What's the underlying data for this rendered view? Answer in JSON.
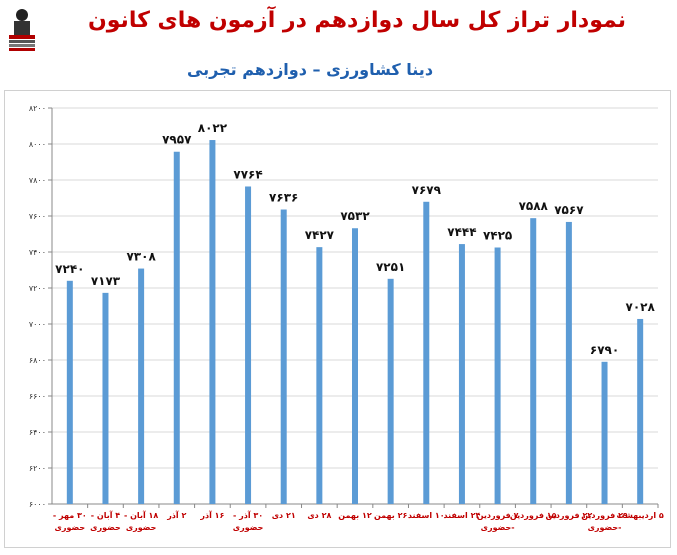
{
  "title": "نمودار تراز کل سال دوازدهم در آزمون های کانون",
  "subtitle": "دینا کشاورزی – دوازدهم تجربی",
  "colors": {
    "bar": "#5b9bd5",
    "title": "#c00000",
    "subtitle": "#1f5fae",
    "xlabel": "#c00000",
    "grid": "#d9d9d9"
  },
  "chart_data": {
    "type": "bar",
    "title": "نمودار تراز کل سال دوازدهم در آزمون های کانون",
    "subtitle": "دینا کشاورزی – دوازدهم تجربی",
    "ylim": [
      6000,
      8200
    ],
    "yticks": [
      6000,
      6200,
      6400,
      6600,
      6800,
      7000,
      7200,
      7400,
      7600,
      7800,
      8000,
      8200
    ],
    "ytick_labels": [
      "۶۰۰۰",
      "۶۲۰۰",
      "۶۴۰۰",
      "۶۶۰۰",
      "۶۸۰۰",
      "۷۰۰۰",
      "۷۲۰۰",
      "۷۴۰۰",
      "۷۶۰۰",
      "۷۸۰۰",
      "۸۰۰۰",
      "۸۲۰۰"
    ],
    "grid": true,
    "categories": [
      [
        "۳۰ مهر -",
        "حضوری"
      ],
      [
        "۴ آبان -",
        "حضوری"
      ],
      [
        "۱۸ آبان -",
        "حضوری"
      ],
      [
        "۲ آذر"
      ],
      [
        "۱۶ آذر"
      ],
      [
        "۳۰ آذر -",
        "حضوری"
      ],
      [
        "۲۱ دی"
      ],
      [
        "۲۸ دی"
      ],
      [
        "۱۲ بهمن"
      ],
      [
        "۲۶ بهمن"
      ],
      [
        "۱۰ اسفند"
      ],
      [
        "۲۴ اسفند"
      ],
      [
        "۷ فروردین",
        "-حضوری"
      ],
      [
        "۱۵ فروردین"
      ],
      [
        "۲۲ فروردین"
      ],
      [
        "۲۹ فروردین",
        "-حضوری"
      ],
      [
        "۵ اردیبهشت"
      ]
    ],
    "values": [
      7240,
      7173,
      7308,
      7957,
      8022,
      7764,
      7636,
      7427,
      7532,
      7251,
      7679,
      7444,
      7425,
      7588,
      7567,
      6790,
      7028
    ],
    "value_labels": [
      "۷۲۴۰",
      "۷۱۷۳",
      "۷۳۰۸",
      "۷۹۵۷",
      "۸۰۲۲",
      "۷۷۶۴",
      "۷۶۳۶",
      "۷۴۲۷",
      "۷۵۳۲",
      "۷۲۵۱",
      "۷۶۷۹",
      "۷۴۴۴",
      "۷۴۲۵",
      "۷۵۸۸",
      "۷۵۶۷",
      "۶۷۹۰",
      "۷۰۲۸"
    ]
  }
}
